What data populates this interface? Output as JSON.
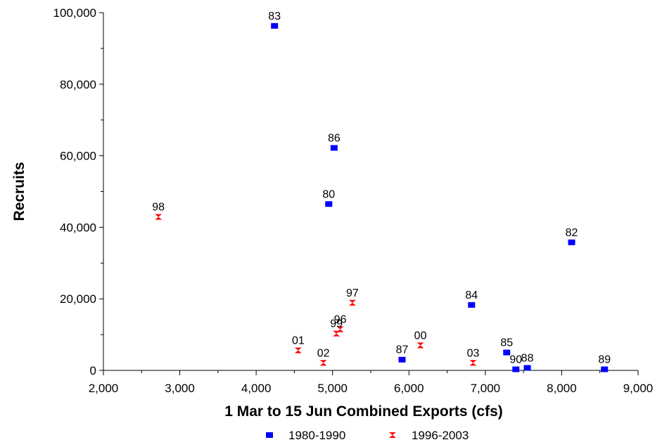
{
  "chart_data": {
    "type": "scatter",
    "title": "",
    "xlabel": "1 Mar to 15 Jun Combined Exports (cfs)",
    "ylabel": "Recruits",
    "xlim": [
      2000,
      9000
    ],
    "ylim": [
      0,
      100000
    ],
    "x_ticks": [
      2000,
      3000,
      4000,
      5000,
      6000,
      7000,
      8000,
      9000
    ],
    "x_tick_labels": [
      "2,000",
      "3,000",
      "4,000",
      "5,000",
      "6,000",
      "7,000",
      "8,000",
      "9,000"
    ],
    "y_ticks": [
      0,
      20000,
      40000,
      60000,
      80000,
      100000
    ],
    "y_tick_labels": [
      "0",
      "20,000",
      "40,000",
      "60,000",
      "80,000",
      "100,000"
    ],
    "grid": false,
    "legend_position": "bottom",
    "series": [
      {
        "name": "1980-1990",
        "marker": "square",
        "color": "#0000FF",
        "points": [
          {
            "label": "80",
            "x": 4950,
            "y": 46500
          },
          {
            "label": "82",
            "x": 8130,
            "y": 35800
          },
          {
            "label": "83",
            "x": 4240,
            "y": 96300
          },
          {
            "label": "84",
            "x": 6820,
            "y": 18300
          },
          {
            "label": "85",
            "x": 7280,
            "y": 5000
          },
          {
            "label": "86",
            "x": 5020,
            "y": 62200
          },
          {
            "label": "87",
            "x": 5910,
            "y": 3000
          },
          {
            "label": "88",
            "x": 7550,
            "y": 700
          },
          {
            "label": "89",
            "x": 8560,
            "y": 300
          },
          {
            "label": "90",
            "x": 7400,
            "y": 300
          }
        ]
      },
      {
        "name": "1996-2003",
        "marker": "bowtie",
        "color": "#FF0000",
        "points": [
          {
            "label": "96",
            "x": 5100,
            "y": 11500
          },
          {
            "label": "97",
            "x": 5260,
            "y": 18900
          },
          {
            "label": "98",
            "x": 2720,
            "y": 42900
          },
          {
            "label": "99",
            "x": 5050,
            "y": 10300
          },
          {
            "label": "00",
            "x": 6150,
            "y": 7000
          },
          {
            "label": "01",
            "x": 4550,
            "y": 5600
          },
          {
            "label": "02",
            "x": 4880,
            "y": 2100
          },
          {
            "label": "03",
            "x": 6840,
            "y": 2100
          }
        ]
      }
    ]
  }
}
